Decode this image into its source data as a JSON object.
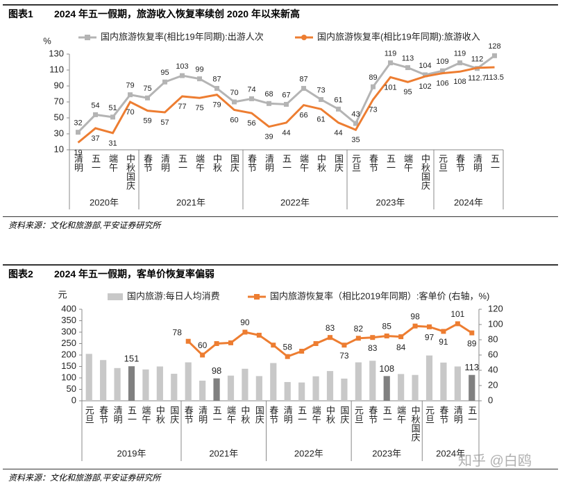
{
  "figures": [
    {
      "number": "图表1",
      "title": "2024 年五一假期，旅游收入恢复率续创 2020 年以来新高",
      "source": "资料来源：文化和旅游部,平安证券研究所"
    },
    {
      "number": "图表2",
      "title": "2024 年五一假期，客单价恢复率偏弱",
      "source": "资料来源：文化和旅游部,平安证券研究所"
    }
  ],
  "watermark": "知乎 @白鸥",
  "chart_data": [
    {
      "type": "line",
      "ylabel": "%",
      "ylim": [
        10,
        130
      ],
      "yticks": [
        10,
        30,
        50,
        70,
        90,
        110,
        130
      ],
      "category_groups": [
        {
          "name": "2020年",
          "categories": [
            "清明",
            "五一",
            "端午",
            "中秋国庆"
          ]
        },
        {
          "name": "2021年",
          "categories": [
            "春节",
            "清明",
            "五一",
            "端午",
            "中秋",
            "国庆"
          ]
        },
        {
          "name": "2022年",
          "categories": [
            "春节",
            "清明",
            "五一",
            "端午",
            "中秋",
            "国庆"
          ]
        },
        {
          "name": "2023年",
          "categories": [
            "元旦",
            "春节",
            "五一",
            "端午",
            "中秋国庆"
          ]
        },
        {
          "name": "2024年",
          "categories": [
            "元旦",
            "春节",
            "清明",
            "五一"
          ]
        }
      ],
      "series": [
        {
          "name": "国内旅游恢复率(相比19年同期):出游人次",
          "color": "#b4b4b4",
          "values": [
            32,
            54,
            51,
            79,
            75,
            95,
            103,
            99,
            87,
            70,
            74,
            68,
            67,
            87,
            73,
            61,
            43,
            89,
            119,
            113,
            104,
            109,
            119,
            112,
            128
          ]
        },
        {
          "name": "国内旅游恢复率(相比19年同期):旅游收入",
          "color": "#ed7d31",
          "values": [
            19,
            37,
            31,
            70,
            59,
            57,
            77,
            75,
            79,
            60,
            56,
            39,
            44,
            66,
            61,
            44,
            35,
            73,
            101,
            95,
            102,
            106,
            108,
            112.7,
            113.5
          ]
        }
      ]
    },
    {
      "type": "bar_line",
      "ylabel": "元",
      "ylim": [
        0,
        400
      ],
      "yticks": [
        0,
        50,
        100,
        150,
        200,
        250,
        300,
        350,
        400
      ],
      "y2lim": [
        0,
        120
      ],
      "y2ticks": [
        0,
        20,
        40,
        60,
        80,
        100,
        120
      ],
      "category_groups": [
        {
          "name": "2019年",
          "categories": [
            "元旦",
            "春节",
            "清明",
            "五一",
            "端午",
            "中秋",
            "国庆"
          ]
        },
        {
          "name": "2021年",
          "categories": [
            "春节",
            "清明",
            "五一",
            "端午",
            "中秋",
            "国庆"
          ]
        },
        {
          "name": "2022年",
          "categories": [
            "春节",
            "清明",
            "五一",
            "端午",
            "中秋",
            "国庆"
          ]
        },
        {
          "name": "2023年",
          "categories": [
            "元旦",
            "春节",
            "五一",
            "端午",
            "中秋国庆"
          ]
        },
        {
          "name": "2024年",
          "categories": [
            "元旦",
            "春节",
            "清明",
            "五一"
          ]
        }
      ],
      "series": [
        {
          "name": "国内旅游:每日人均消费",
          "type": "bar",
          "color": "#c8c8c8",
          "label_color": "#c00000",
          "colors": [
            "#c8c8c8",
            "#c8c8c8",
            "#c8c8c8",
            "#808080",
            "#c8c8c8",
            "#c8c8c8",
            "#c8c8c8",
            "#c8c8c8",
            "#c8c8c8",
            "#808080",
            "#c8c8c8",
            "#c8c8c8",
            "#c8c8c8",
            "#c8c8c8",
            "#c8c8c8",
            "#c8c8c8",
            "#c8c8c8",
            "#c8c8c8",
            "#c8c8c8",
            "#c8c8c8",
            "#c8c8c8",
            "#808080",
            "#c8c8c8",
            "#c8c8c8",
            "#c8c8c8",
            "#c8c8c8",
            "#c8c8c8",
            "#808080"
          ],
          "values": [
            205,
            178,
            143,
            151,
            137,
            150,
            118,
            168,
            88,
            98,
            110,
            140,
            108,
            165,
            82,
            80,
            107,
            130,
            97,
            168,
            175,
            108,
            117,
            113,
            198,
            167,
            150,
            113
          ],
          "value_labels": [
            null,
            null,
            null,
            "151",
            null,
            null,
            null,
            null,
            null,
            "98",
            null,
            null,
            null,
            null,
            null,
            null,
            null,
            null,
            null,
            null,
            null,
            "108",
            null,
            null,
            null,
            null,
            null,
            "113"
          ]
        },
        {
          "name": "国内旅游恢复率（相比2019年同期）:客单价 (右轴，%)",
          "type": "line",
          "axis": "y2",
          "color": "#ed7d31",
          "values": [
            null,
            null,
            null,
            null,
            null,
            null,
            null,
            78,
            60,
            75,
            76,
            90,
            86,
            73,
            58,
            65,
            75,
            83,
            73,
            82,
            83,
            85,
            84,
            98,
            97,
            91,
            101,
            89
          ],
          "value_labels": [
            null,
            null,
            null,
            null,
            null,
            null,
            null,
            "78",
            "60",
            null,
            null,
            "90",
            null,
            null,
            "58",
            null,
            null,
            "83",
            "73",
            "82",
            "83",
            "85",
            "84",
            "98",
            "97",
            "91",
            "101",
            "89"
          ]
        }
      ]
    }
  ]
}
